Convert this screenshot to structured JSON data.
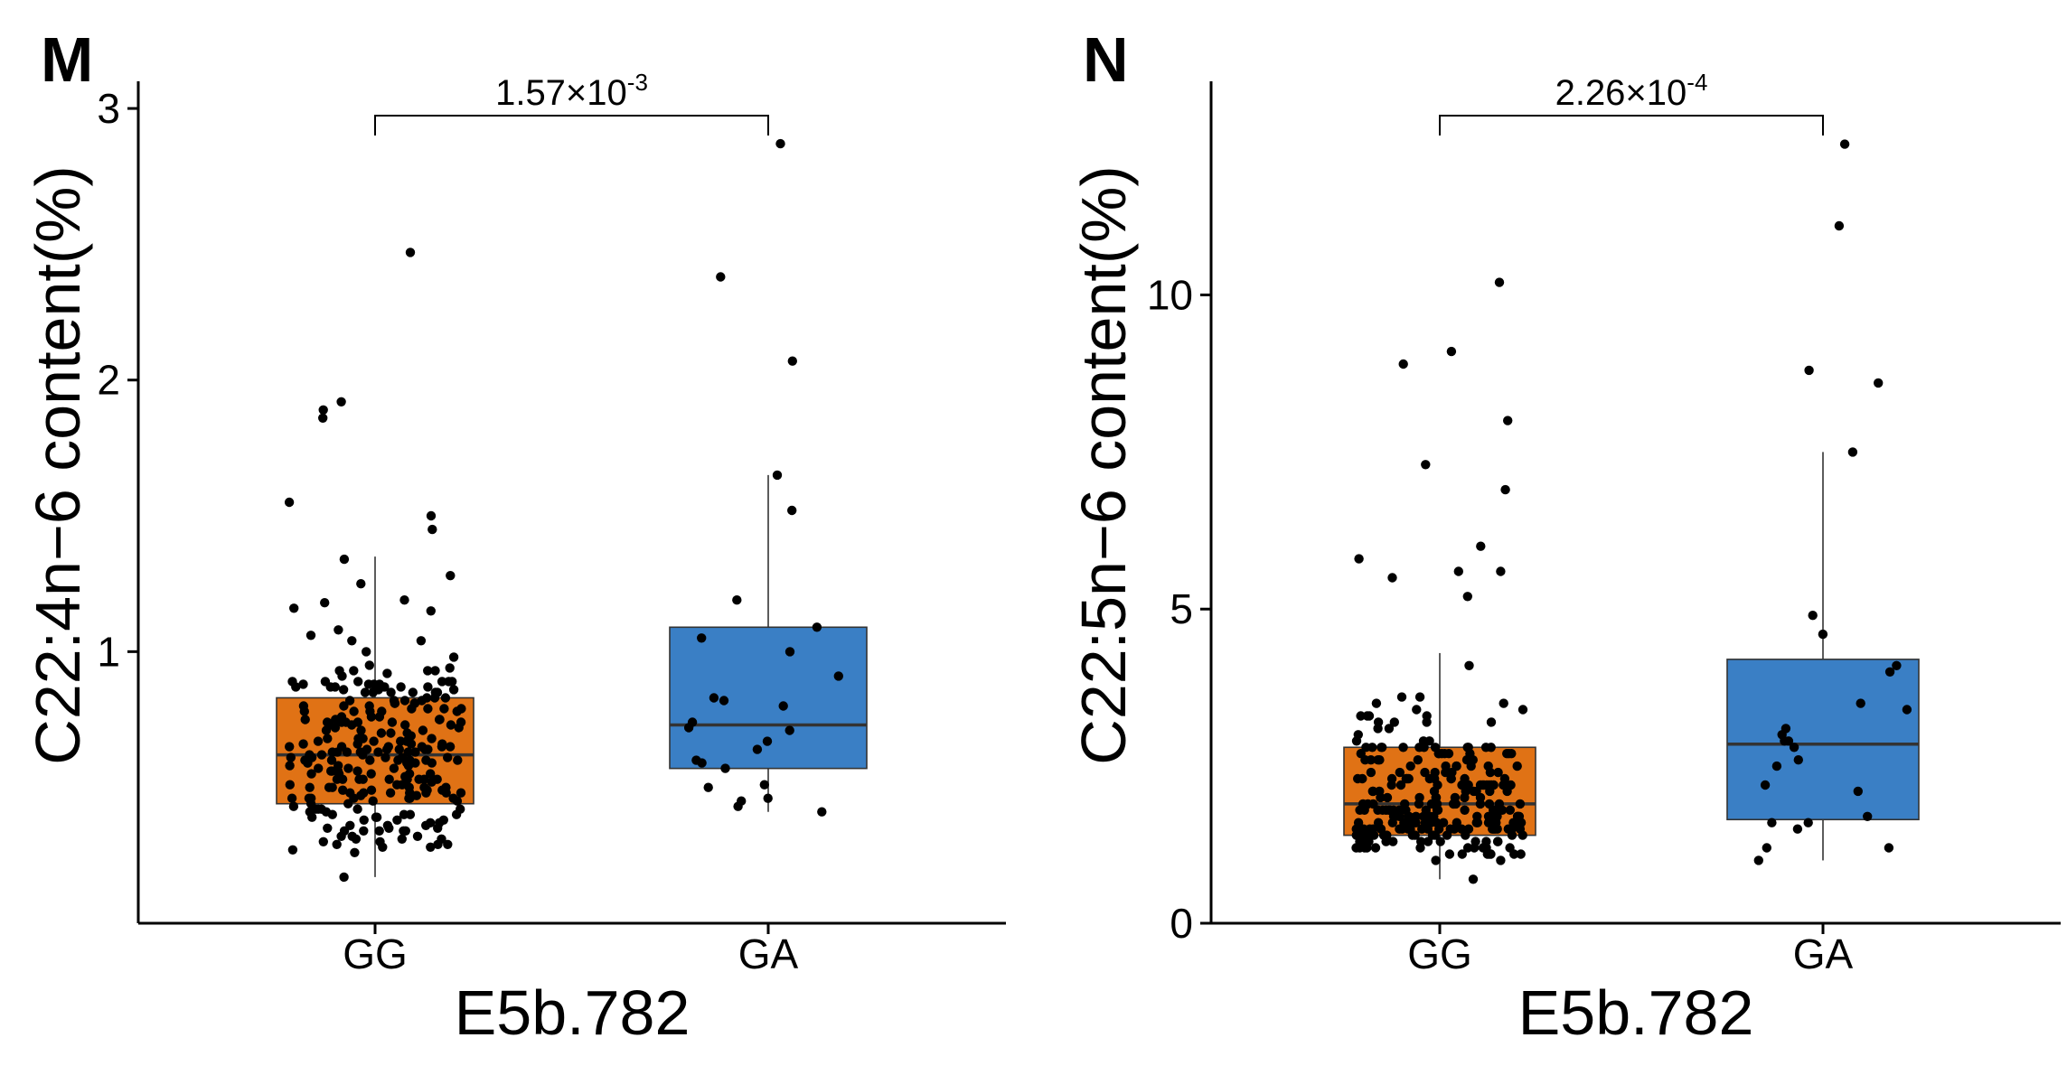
{
  "chart_data": [
    {
      "panel": "M",
      "type": "boxplot",
      "xlabel": "E5b.782",
      "ylabel": "C22:4n−6 content(%)",
      "categories": [
        "GG",
        "GA"
      ],
      "ylim": [
        0.0,
        3.1
      ],
      "yticks": [
        1,
        2,
        3
      ],
      "significance": {
        "base": "1.57×10",
        "exp": "-3"
      },
      "series": [
        {
          "name": "GG",
          "color": "#E07215",
          "box": {
            "q1": 0.44,
            "median": 0.62,
            "q3": 0.83,
            "whisker_low": 0.17,
            "whisker_high": 1.35
          },
          "points": [
            0.31,
            1.92,
            0.6,
            0.74,
            0.54,
            0.54,
            0.57,
            0.31,
            0.69,
            0.59,
            0.47,
            0.63,
            0.48,
            0.62,
            0.35,
            0.73,
            1.18,
            0.64,
            0.37,
            0.83,
            0.59,
            0.6,
            0.59,
            1.04,
            0.29,
            0.32,
            0.29,
            0.75,
            0.71,
            0.62,
            0.28,
            0.42,
            0.42,
            0.86,
            0.46,
            0.39,
            0.78,
            0.95,
            0.53,
            0.68,
            0.38,
            0.75,
            0.55,
            0.65,
            0.7,
            0.93,
            0.6,
            0.59,
            0.48,
            0.78,
            0.63,
            0.66,
            0.48,
            0.63,
            0.26,
            0.74,
            1.25,
            0.89,
            0.53,
            0.89,
            0.56,
            0.55,
            0.4,
            1.55,
            0.56,
            0.53,
            0.47,
            0.41,
            0.93,
            0.49,
            0.78,
            0.85,
            0.81,
            0.48,
            0.46,
            0.87,
            1.0,
            0.39,
            0.34,
            0.55,
            0.45,
            0.98,
            1.89,
            0.86,
            0.83,
            0.82,
            0.61,
            0.64,
            0.87,
            0.42,
            0.64,
            0.53,
            0.63,
            0.36,
            0.48,
            0.67,
            0.42,
            0.64,
            0.73,
            0.29,
            0.36,
            0.58,
            0.66,
            1.28,
            0.8,
            0.87,
            0.64,
            0.87,
            0.91,
            0.35,
            0.5,
            0.79,
            0.53,
            0.68,
            0.51,
            1.34,
            0.66,
            0.52,
            0.6,
            0.79,
            0.85,
            0.85,
            0.76,
            0.65,
            0.4,
            0.3,
            0.67,
            0.7,
            0.82,
            0.85,
            0.51,
            0.61,
            0.67,
            0.44,
            0.92,
            0.89,
            0.34,
            0.85,
            0.17,
            0.53,
            0.36,
            0.93,
            0.56,
            0.74,
            0.46,
            0.28,
            0.4,
            0.46,
            0.63,
            0.68,
            0.49,
            0.8,
            0.55,
            0.76,
            0.61,
            0.66,
            0.44,
            0.58,
            0.57,
            0.31,
            0.75,
            0.46,
            0.62,
            0.41,
            0.65,
            0.79,
            0.4,
            0.82,
            0.71,
            0.78,
            0.89,
            0.49,
            0.6,
            0.89,
            0.48,
            0.72,
            0.35,
            0.6,
            0.53,
            0.45,
            0.5,
            0.63,
            0.32,
            0.37,
            0.58,
            0.34,
            0.81,
            0.76,
            0.46,
            0.59,
            0.75,
            0.39,
            0.82,
            0.43,
            1.06,
            0.88,
            0.88,
            0.73,
            0.55,
            0.38,
            0.65,
            0.57,
            0.48,
            0.34,
            0.7,
            0.53,
            0.65,
            0.94,
            0.81,
            0.89,
            0.65,
            0.72,
            0.87,
            0.68,
            0.56,
            0.73,
            0.6,
            1.16,
            0.63,
            0.78,
            0.67,
            0.79,
            0.93,
            0.86,
            0.85,
            0.42,
            0.5,
            0.8,
            1.19,
            0.38,
            0.74,
            0.53,
            0.74,
            0.51,
            0.61,
            0.88,
            0.48,
            0.32,
            0.27,
            0.61,
            1.08,
            1.15,
            0.81,
            0.46,
            0.88,
            0.49,
            0.3,
            0.5,
            0.74,
            0.5,
            0.83,
            0.87,
            0.34,
            0.53,
            0.71,
            0.5,
            2.47,
            1.86,
            1.45,
            1.5,
            1.04
          ]
        },
        {
          "name": "GA",
          "color": "#3A7FC5",
          "box": {
            "q1": 0.57,
            "median": 0.73,
            "q3": 1.09,
            "whisker_low": 0.41,
            "whisker_high": 1.65
          },
          "points": [
            2.38,
            0.5,
            0.6,
            0.82,
            0.45,
            0.51,
            0.67,
            0.74,
            0.43,
            1.0,
            0.91,
            0.83,
            0.72,
            0.57,
            1.09,
            0.46,
            1.52,
            2.87,
            1.05,
            0.41,
            0.64,
            2.07,
            0.71,
            1.19,
            0.59,
            0.8,
            1.65
          ]
        }
      ]
    },
    {
      "panel": "N",
      "type": "boxplot",
      "xlabel": "E5b.782",
      "ylabel": "C22:5n−6 content(%)",
      "categories": [
        "GG",
        "GA"
      ],
      "ylim": [
        0.0,
        13.4
      ],
      "yticks": [
        0,
        5,
        10
      ],
      "significance": {
        "base": "2.26×10",
        "exp": "-4"
      },
      "series": [
        {
          "name": "GG",
          "color": "#E07215",
          "box": {
            "q1": 1.4,
            "median": 1.9,
            "q3": 2.8,
            "whisker_low": 0.7,
            "whisker_high": 4.3
          },
          "points": [
            1.3,
            3.3,
            1.3,
            1.4,
            2.1,
            1.7,
            1.7,
            1.8,
            2.2,
            1.4,
            2.8,
            1.4,
            1.7,
            4.1,
            2.0,
            2.5,
            2.7,
            1.3,
            2.1,
            2.1,
            1.6,
            1.5,
            1.5,
            1.8,
            1.9,
            2.7,
            1.5,
            1.2,
            2.1,
            1.1,
            2.8,
            1.5,
            1.5,
            2.2,
            1.7,
            1.7,
            1.6,
            2.3,
            2.8,
            3.1,
            1.9,
            1.6,
            2.6,
            1.5,
            1.5,
            1.7,
            2.7,
            1.5,
            1.2,
            2.8,
            3.4,
            1.7,
            1.7,
            1.2,
            2.7,
            2.9,
            1.5,
            1.6,
            2.5,
            1.2,
            2.0,
            1.6,
            1.6,
            2.6,
            1.3,
            1.3,
            1.6,
            1.0,
            1.4,
            2.4,
            1.5,
            1.5,
            2.0,
            2.3,
            2.6,
            1.3,
            1.5,
            1.7,
            2.4,
            1.3,
            1.9,
            2.8,
            1.3,
            2.1,
            1.8,
            1.2,
            1.8,
            1.2,
            2.7,
            2.4,
            2.3,
            3.2,
            3.1,
            2.6,
            2.2,
            2.1,
            2.3,
            1.6,
            3.2,
            2.8,
            3.0,
            2.2,
            1.5,
            3.6,
            3.2,
            1.6,
            1.4,
            1.9,
            2.1,
            3.3,
            1.6,
            1.6,
            2.2,
            2.0,
            2.8,
            1.8,
            2.2,
            1.1,
            1.4,
            1.7,
            2.3,
            2.6,
            1.6,
            1.8,
            1.8,
            1.9,
            2.8,
            2.0,
            2.5,
            1.4,
            1.5,
            3.5,
            1.2,
            1.8,
            3.4,
            2.0,
            2.6,
            1.4,
            2.3,
            2.4,
            3.2,
            1.9,
            2.9,
            1.8,
            1.6,
            2.2,
            1.3,
            1.3,
            1.5,
            1.1,
            1.8,
            1.6,
            1.7,
            3.5,
            1.9,
            1.3,
            1.9,
            2.1,
            2.6,
            1.5,
            3.6,
            1.2,
            2.1,
            1.5,
            1.4,
            2.9,
            2.2,
            1.8,
            2.7,
            2.2,
            1.6,
            2.8,
            1.3,
            1.5,
            1.8,
            1.5,
            1.6,
            1.0,
            2.0,
            1.2,
            0.7,
            1.5,
            2.2,
            1.7,
            1.9,
            2.8,
            2.5,
            1.8,
            1.6,
            3.3,
            2.5,
            2.7,
            2.4,
            1.8,
            1.4,
            2.2,
            1.9,
            2.3,
            1.1,
            2.8,
            1.4,
            1.9,
            1.2,
            1.4,
            2.6,
            2.3,
            2.4,
            1.6,
            2.4,
            1.5,
            1.7,
            1.6,
            2.5,
            1.2,
            1.7,
            1.4,
            3.3,
            1.6,
            2.5,
            1.9,
            1.9,
            2.3,
            1.8,
            2.2,
            1.9,
            2.2,
            1.6,
            2.3,
            2.3,
            1.1,
            2.7,
            1.6,
            1.6,
            1.4,
            2.2,
            2.7,
            2.7,
            1.8,
            1.6,
            1.7,
            2.4,
            1.7,
            1.8,
            2.3,
            1.1,
            1.6,
            1.1,
            1.8,
            2.0,
            1.5,
            1.5,
            2.8,
            1.7,
            1.8,
            9.1,
            7.3,
            6.9,
            5.6,
            5.5,
            5.6,
            8.9,
            8.0,
            5.2,
            10.2,
            6.0,
            5.8
          ]
        },
        {
          "name": "GA",
          "color": "#3A7FC5",
          "box": {
            "q1": 1.65,
            "median": 2.85,
            "q3": 4.2,
            "whisker_low": 1.0,
            "whisker_high": 7.5
          },
          "points": [
            1.2,
            3.4,
            1.7,
            2.9,
            1.2,
            2.2,
            1.6,
            1.5,
            4.0,
            2.6,
            2.1,
            2.5,
            3.1,
            12.4,
            11.1,
            8.8,
            4.9,
            1.6,
            2.9,
            3.0,
            4.1,
            3.5,
            2.8,
            1.0,
            7.5,
            8.6,
            4.6
          ]
        }
      ]
    }
  ]
}
